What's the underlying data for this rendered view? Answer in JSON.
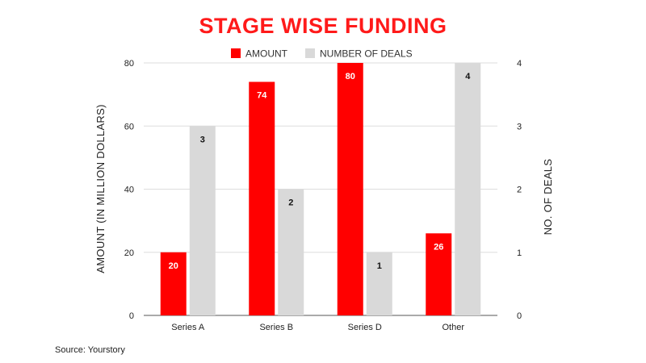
{
  "chart_data": {
    "type": "bar",
    "title": "STAGE WISE FUNDING",
    "categories": [
      "Series A",
      "Series B",
      "Series D",
      "Other"
    ],
    "series": [
      {
        "name": "AMOUNT",
        "axis": "left",
        "color": "#ff0000",
        "label_color": "#ffffff",
        "values": [
          20,
          74,
          80,
          26
        ]
      },
      {
        "name": "NUMBER OF DEALS",
        "axis": "right",
        "color": "#d9d9d9",
        "label_color": "#111111",
        "values": [
          3,
          2,
          1,
          4
        ]
      }
    ],
    "ylabel": "AMOUNT (IN MILLION DOLLARS)",
    "y2label": "NO. OF DEALS",
    "ylim": [
      0,
      80
    ],
    "y2lim": [
      0,
      4
    ],
    "yticks": [
      "0",
      "20",
      "40",
      "60",
      "80"
    ],
    "y2ticks": [
      "0",
      "1",
      "2",
      "3",
      "4"
    ],
    "grid": true,
    "legend_position": "top"
  },
  "source": "Source: Yourstory"
}
